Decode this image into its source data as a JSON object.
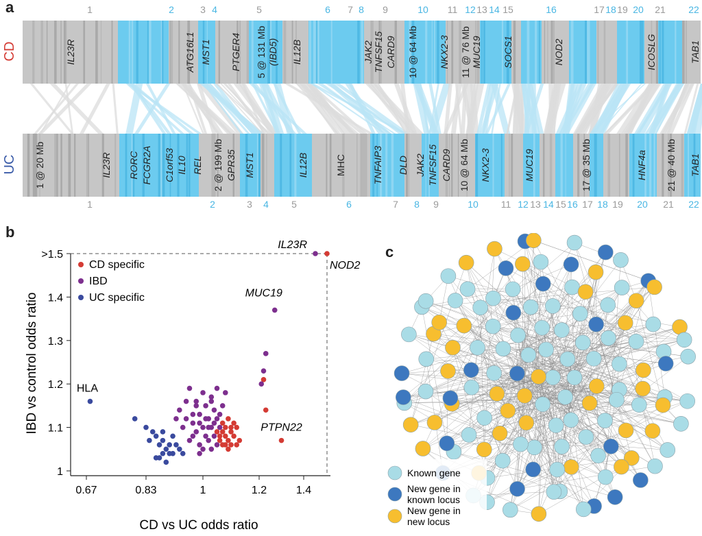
{
  "panel_letters": {
    "a": "a",
    "b": "b",
    "c": "c"
  },
  "panel_a": {
    "colors": {
      "grey": "#c6c6c6",
      "grey_dark": "#a9a9a9",
      "blue": "#6ccbef",
      "blue_light": "#b9e4f6",
      "cd_label": "#d43b34",
      "uc_label": "#3a5ba8"
    },
    "cd_row_label": "CD",
    "uc_row_label": "UC",
    "top_chromosomes": [
      {
        "label": "1",
        "color": "grey"
      },
      {
        "label": "2",
        "color": "blue"
      },
      {
        "label": "3",
        "color": "grey"
      },
      {
        "label": "4",
        "color": "blue"
      },
      {
        "label": "5",
        "color": "grey"
      },
      {
        "label": "6",
        "color": "blue"
      },
      {
        "label": "7",
        "color": "grey"
      },
      {
        "label": "8",
        "color": "blue"
      },
      {
        "label": "9",
        "color": "grey"
      },
      {
        "label": "10",
        "color": "blue"
      },
      {
        "label": "11",
        "color": "grey"
      },
      {
        "label": "12",
        "color": "blue"
      },
      {
        "label": "13",
        "color": "grey"
      },
      {
        "label": "14",
        "color": "blue"
      },
      {
        "label": "15",
        "color": "grey"
      },
      {
        "label": "16",
        "color": "blue"
      },
      {
        "label": "17",
        "color": "grey"
      },
      {
        "label": "18",
        "color": "blue"
      },
      {
        "label": "19",
        "color": "grey"
      },
      {
        "label": "20",
        "color": "blue"
      },
      {
        "label": "21",
        "color": "grey"
      },
      {
        "label": "22",
        "color": "blue"
      }
    ],
    "bottom_chromosomes": [
      {
        "label": "1",
        "color": "grey"
      },
      {
        "label": "2",
        "color": "blue"
      },
      {
        "label": "3",
        "color": "grey"
      },
      {
        "label": "4",
        "color": "blue"
      },
      {
        "label": "5",
        "color": "grey"
      },
      {
        "label": "6",
        "color": "blue"
      },
      {
        "label": "7",
        "color": "grey"
      },
      {
        "label": "8",
        "color": "blue"
      },
      {
        "label": "9",
        "color": "grey"
      },
      {
        "label": "10",
        "color": "blue"
      },
      {
        "label": "11",
        "color": "grey"
      },
      {
        "label": "12",
        "color": "blue"
      },
      {
        "label": "13",
        "color": "grey"
      },
      {
        "label": "14",
        "color": "blue"
      },
      {
        "label": "15",
        "color": "grey"
      },
      {
        "label": "16",
        "color": "blue"
      },
      {
        "label": "17",
        "color": "grey"
      },
      {
        "label": "18",
        "color": "blue"
      },
      {
        "label": "19",
        "color": "grey"
      },
      {
        "label": "20",
        "color": "blue"
      },
      {
        "label": "21",
        "color": "grey"
      },
      {
        "label": "22",
        "color": "blue"
      }
    ],
    "cd_genes": [
      {
        "text": "IL23R",
        "italic": true
      },
      {
        "text": "ATG16L1",
        "italic": true
      },
      {
        "text": "MST1",
        "italic": true
      },
      {
        "text": "PTGER4",
        "italic": true
      },
      {
        "text": "5 @ 131 Mb",
        "italic": false
      },
      {
        "text": "(IBD5)",
        "italic": true
      },
      {
        "text": "IL12B",
        "italic": true
      },
      {
        "text": "JAK2",
        "italic": true
      },
      {
        "text": "TNFSF15",
        "italic": true
      },
      {
        "text": "CARD9",
        "italic": true
      },
      {
        "text": "10 @ 64 Mb",
        "italic": false
      },
      {
        "text": "NKX2-3",
        "italic": true
      },
      {
        "text": "11 @ 76 Mb",
        "italic": false
      },
      {
        "text": "MUC19",
        "italic": true
      },
      {
        "text": "SOCS1",
        "italic": true
      },
      {
        "text": "NOD2",
        "italic": true
      },
      {
        "text": "ICOSLG",
        "italic": true
      },
      {
        "text": "TAB1",
        "italic": true
      }
    ],
    "uc_genes": [
      {
        "text": "1 @ 20 Mb",
        "italic": false
      },
      {
        "text": "IL23R",
        "italic": true
      },
      {
        "text": "RORC",
        "italic": true
      },
      {
        "text": "FCGR2A",
        "italic": true
      },
      {
        "text": "C1orf53",
        "italic": true
      },
      {
        "text": "IL10",
        "italic": true
      },
      {
        "text": "REL",
        "italic": true
      },
      {
        "text": "2 @ 199 Mb",
        "italic": false
      },
      {
        "text": "GPR35",
        "italic": true
      },
      {
        "text": "MST1",
        "italic": true
      },
      {
        "text": "IL12B",
        "italic": true
      },
      {
        "text": "MHC",
        "italic": false
      },
      {
        "text": "TNFAIP3",
        "italic": true
      },
      {
        "text": "DLD",
        "italic": true
      },
      {
        "text": "JAK2",
        "italic": true
      },
      {
        "text": "TNFSF15",
        "italic": true
      },
      {
        "text": "CARD9",
        "italic": true
      },
      {
        "text": "10 @ 64 Mb",
        "italic": false
      },
      {
        "text": "NKX2-3",
        "italic": true
      },
      {
        "text": "MUC19",
        "italic": true
      },
      {
        "text": "17 @ 35 Mb",
        "italic": false
      },
      {
        "text": "HNF4a",
        "italic": true
      },
      {
        "text": "21 @ 40 Mb",
        "italic": false
      },
      {
        "text": "TAB1",
        "italic": true
      }
    ]
  },
  "chart_data": {
    "type": "scatter",
    "xlabel": "CD vs UC odds ratio",
    "ylabel": "IBD vs control odds ratio",
    "x_ticks": [
      "0.67",
      "0.83",
      "1",
      "1.2",
      "1.4"
    ],
    "y_ticks": [
      ">1.5",
      "1.4",
      "1.3",
      "1.2",
      "1.1",
      "1"
    ],
    "xlim": [
      0.67,
      1.5
    ],
    "ylim": [
      1.0,
      1.5
    ],
    "legend": {
      "position": "top-left"
    },
    "series": [
      {
        "name": "CD specific",
        "color": "#d43b34",
        "points": [
          [
            1.5,
            1.5
          ],
          [
            1.22,
            1.21
          ],
          [
            1.23,
            1.14
          ],
          [
            1.3,
            1.07
          ],
          [
            1.07,
            1.09
          ],
          [
            1.08,
            1.1
          ],
          [
            1.09,
            1.07
          ],
          [
            1.1,
            1.06
          ],
          [
            1.06,
            1.07
          ],
          [
            1.11,
            1.08
          ],
          [
            1.12,
            1.1
          ],
          [
            1.07,
            1.11
          ],
          [
            1.05,
            1.09
          ],
          [
            1.08,
            1.06
          ],
          [
            1.1,
            1.09
          ],
          [
            1.13,
            1.07
          ],
          [
            1.06,
            1.08
          ],
          [
            1.09,
            1.12
          ],
          [
            1.1,
            1.1
          ],
          [
            1.08,
            1.08
          ],
          [
            1.12,
            1.06
          ],
          [
            1.07,
            1.06
          ],
          [
            1.11,
            1.11
          ],
          [
            1.09,
            1.05
          ]
        ]
      },
      {
        "name": "IBD",
        "color": "#7d2f8e",
        "points": [
          [
            1.45,
            1.5
          ],
          [
            1.27,
            1.37
          ],
          [
            1.23,
            1.27
          ],
          [
            1.22,
            1.23
          ],
          [
            1.21,
            1.2
          ],
          [
            0.96,
            1.19
          ],
          [
            1.0,
            1.18
          ],
          [
            1.03,
            1.17
          ],
          [
            0.98,
            1.16
          ],
          [
            1.01,
            1.15
          ],
          [
            1.04,
            1.14
          ],
          [
            0.97,
            1.13
          ],
          [
            1.02,
            1.12
          ],
          [
            1.05,
            1.12
          ],
          [
            0.99,
            1.11
          ],
          [
            1.03,
            1.1
          ],
          [
            1.06,
            1.1
          ],
          [
            0.95,
            1.12
          ],
          [
            1.0,
            1.1
          ],
          [
            0.98,
            1.09
          ],
          [
            1.01,
            1.08
          ],
          [
            1.04,
            1.08
          ],
          [
            0.97,
            1.08
          ],
          [
            1.02,
            1.07
          ],
          [
            0.99,
            1.06
          ],
          [
            1.05,
            1.06
          ],
          [
            0.94,
            1.1
          ],
          [
            0.96,
            1.07
          ],
          [
            1.0,
            1.05
          ],
          [
            1.03,
            1.05
          ],
          [
            0.93,
            1.14
          ],
          [
            0.92,
            1.12
          ],
          [
            1.06,
            1.13
          ],
          [
            1.07,
            1.15
          ],
          [
            1.08,
            1.18
          ],
          [
            1.05,
            1.19
          ],
          [
            0.99,
            1.13
          ],
          [
            1.01,
            1.12
          ],
          [
            0.98,
            1.15
          ],
          [
            1.03,
            1.16
          ],
          [
            0.95,
            1.16
          ],
          [
            0.97,
            1.11
          ],
          [
            0.99,
            1.04
          ],
          [
            1.02,
            1.1
          ],
          [
            1.04,
            1.11
          ]
        ]
      },
      {
        "name": "UC specific",
        "color": "#3a4a9e",
        "points": [
          [
            0.68,
            1.16
          ],
          [
            0.8,
            1.12
          ],
          [
            0.83,
            1.1
          ],
          [
            0.85,
            1.09
          ],
          [
            0.86,
            1.08
          ],
          [
            0.87,
            1.06
          ],
          [
            0.88,
            1.07
          ],
          [
            0.89,
            1.05
          ],
          [
            0.9,
            1.06
          ],
          [
            0.91,
            1.08
          ],
          [
            0.9,
            1.04
          ],
          [
            0.88,
            1.04
          ],
          [
            0.86,
            1.03
          ],
          [
            0.89,
            1.02
          ],
          [
            0.92,
            1.06
          ],
          [
            0.93,
            1.05
          ],
          [
            0.87,
            1.03
          ],
          [
            0.91,
            1.04
          ],
          [
            0.84,
            1.07
          ],
          [
            0.88,
            1.09
          ],
          [
            0.94,
            1.04
          ]
        ]
      }
    ],
    "annotations": [
      {
        "text": "IL23R",
        "italic": true,
        "x": 1.45,
        "y": 1.5
      },
      {
        "text": "NOD2",
        "italic": true,
        "x": 1.5,
        "y": 1.5
      },
      {
        "text": "MUC19",
        "italic": true,
        "x": 1.27,
        "y": 1.37
      },
      {
        "text": "PTPN22",
        "italic": true,
        "x": 1.3,
        "y": 1.07
      },
      {
        "text": "HLA",
        "italic": false,
        "x": 0.68,
        "y": 1.16
      }
    ]
  },
  "panel_c": {
    "colors": {
      "known": "#a9dce6",
      "new_known_locus": "#3d78bf",
      "new_new_locus": "#f7be2f",
      "edge": "#8a8a8a"
    },
    "legend": [
      {
        "key": "known",
        "label": "Known gene"
      },
      {
        "key": "new_known_locus",
        "label": "New gene in known locus"
      },
      {
        "key": "new_new_locus",
        "label": "New gene in new locus"
      }
    ]
  }
}
